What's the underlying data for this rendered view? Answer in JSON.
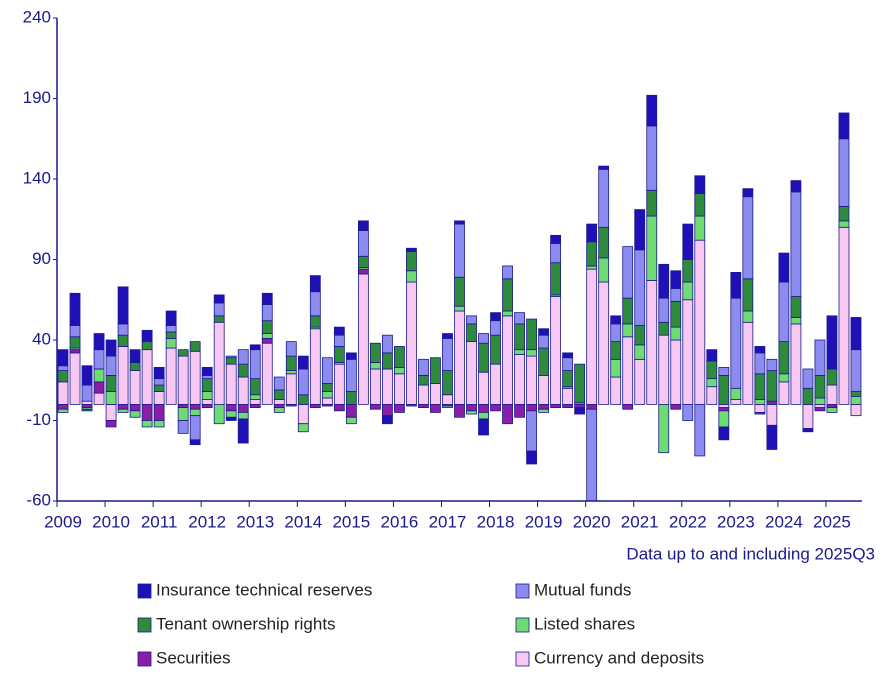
{
  "chart_data": {
    "type": "bar",
    "stacked": true,
    "annotation": "Data up to and including 2025Q3",
    "categories": [
      "2009",
      null,
      null,
      null,
      "2010",
      null,
      null,
      null,
      "2011",
      null,
      null,
      null,
      "2012",
      null,
      null,
      null,
      "2013",
      null,
      null,
      null,
      "2014",
      null,
      null,
      null,
      "2015",
      null,
      null,
      null,
      "2016",
      null,
      null,
      null,
      "2017",
      null,
      null,
      null,
      "2018",
      null,
      null,
      null,
      "2019",
      null,
      null,
      null,
      "2020",
      null,
      null,
      null,
      "2021",
      null,
      null,
      null,
      "2022",
      null,
      null,
      null,
      "2023",
      null,
      null,
      null,
      "2024",
      null,
      null,
      null,
      "2025",
      null,
      null
    ],
    "series": [
      {
        "name": "Currency and deposits",
        "color": "#f7c8f2",
        "values": [
          14,
          32,
          2,
          7,
          -10,
          36,
          21,
          34,
          8,
          35,
          30,
          33,
          3,
          51,
          25,
          17,
          3,
          38,
          3,
          19,
          -12,
          47,
          4,
          25,
          0,
          81,
          22,
          22,
          19,
          76,
          12,
          13,
          6,
          58,
          39,
          20,
          25,
          55,
          31,
          30,
          18,
          67,
          10,
          0,
          84,
          76,
          17,
          42,
          28,
          77,
          43,
          40,
          65,
          102,
          11,
          -2,
          3,
          51,
          -5,
          -13,
          14,
          50,
          -15,
          -2,
          12,
          110,
          -7
        ]
      },
      {
        "name": "Securities",
        "color": "#8a1ea6",
        "values": [
          -3,
          2,
          -2,
          7,
          -4,
          -3,
          -4,
          -10,
          -10,
          0,
          -2,
          -3,
          -2,
          0,
          -4,
          -5,
          -2,
          3,
          -2,
          -1,
          0,
          -2,
          -1,
          -4,
          -8,
          3,
          -3,
          -7,
          -5,
          -1,
          -2,
          -5,
          -1,
          -8,
          -4,
          -5,
          -4,
          -12,
          -8,
          -4,
          -3,
          -2,
          -2,
          -2,
          -3,
          0,
          0,
          -3,
          0,
          0,
          0,
          -3,
          0,
          0,
          0,
          -2,
          0,
          0,
          -1,
          2,
          0,
          0,
          0,
          -2,
          -2,
          0,
          0
        ]
      },
      {
        "name": "Listed shares",
        "color": "#6fdc72",
        "values": [
          -2,
          1,
          -1,
          8,
          8,
          -2,
          -4,
          -4,
          -4,
          6,
          -8,
          -4,
          5,
          -12,
          -4,
          -4,
          3,
          3,
          -3,
          2,
          -5,
          1,
          4,
          1,
          -4,
          1,
          4,
          0,
          4,
          7,
          0,
          0,
          -1,
          3,
          -2,
          -4,
          0,
          3,
          3,
          4,
          -2,
          1,
          1,
          1,
          2,
          15,
          11,
          8,
          9,
          40,
          -30,
          8,
          11,
          15,
          5,
          -10,
          7,
          7,
          3,
          0,
          5,
          4,
          0,
          4,
          -3,
          4,
          5
        ]
      },
      {
        "name": "Tenant ownership rights",
        "color": "#2e8b3c",
        "values": [
          7,
          7,
          -1,
          0,
          10,
          7,
          5,
          5,
          4,
          4,
          4,
          6,
          8,
          4,
          4,
          8,
          10,
          8,
          6,
          9,
          6,
          7,
          5,
          10,
          8,
          7,
          12,
          10,
          13,
          12,
          6,
          16,
          15,
          18,
          11,
          18,
          18,
          20,
          16,
          19,
          17,
          20,
          10,
          24,
          15,
          19,
          11,
          16,
          12,
          16,
          8,
          16,
          14,
          14,
          11,
          18,
          0,
          20,
          16,
          19,
          20,
          13,
          10,
          14,
          10,
          9,
          3
        ]
      },
      {
        "name": "Mutual funds",
        "color": "#8c8cf0",
        "values": [
          3,
          7,
          10,
          12,
          12,
          7,
          0,
          0,
          4,
          4,
          -8,
          -15,
          2,
          8,
          1,
          9,
          18,
          10,
          8,
          9,
          16,
          15,
          16,
          7,
          20,
          16,
          0,
          11,
          0,
          0,
          10,
          0,
          20,
          33,
          5,
          6,
          9,
          8,
          7,
          -25,
          8,
          12,
          8,
          0,
          -60,
          36,
          11,
          32,
          47,
          40,
          15,
          8,
          -10,
          -32,
          0,
          5,
          56,
          51,
          13,
          7,
          37,
          65,
          12,
          22,
          0,
          42,
          26
        ]
      },
      {
        "name": "Insurance technical reserves",
        "color": "#1f10b8",
        "values": [
          10,
          20,
          12,
          10,
          10,
          23,
          8,
          7,
          7,
          9,
          0,
          -3,
          5,
          5,
          -2,
          -15,
          3,
          7,
          0,
          0,
          8,
          10,
          0,
          5,
          4,
          6,
          0,
          -5,
          0,
          2,
          0,
          0,
          3,
          2,
          0,
          -10,
          5,
          0,
          0,
          -8,
          4,
          5,
          3,
          -4,
          11,
          2,
          5,
          0,
          25,
          19,
          21,
          11,
          22,
          11,
          7,
          -8,
          16,
          5,
          4,
          -15,
          18,
          7,
          -2,
          0,
          33,
          16,
          20
        ]
      }
    ],
    "ylim": [
      -60,
      240
    ],
    "yticks": [
      -60,
      -10,
      40,
      90,
      140,
      190,
      240
    ],
    "grid": false
  }
}
